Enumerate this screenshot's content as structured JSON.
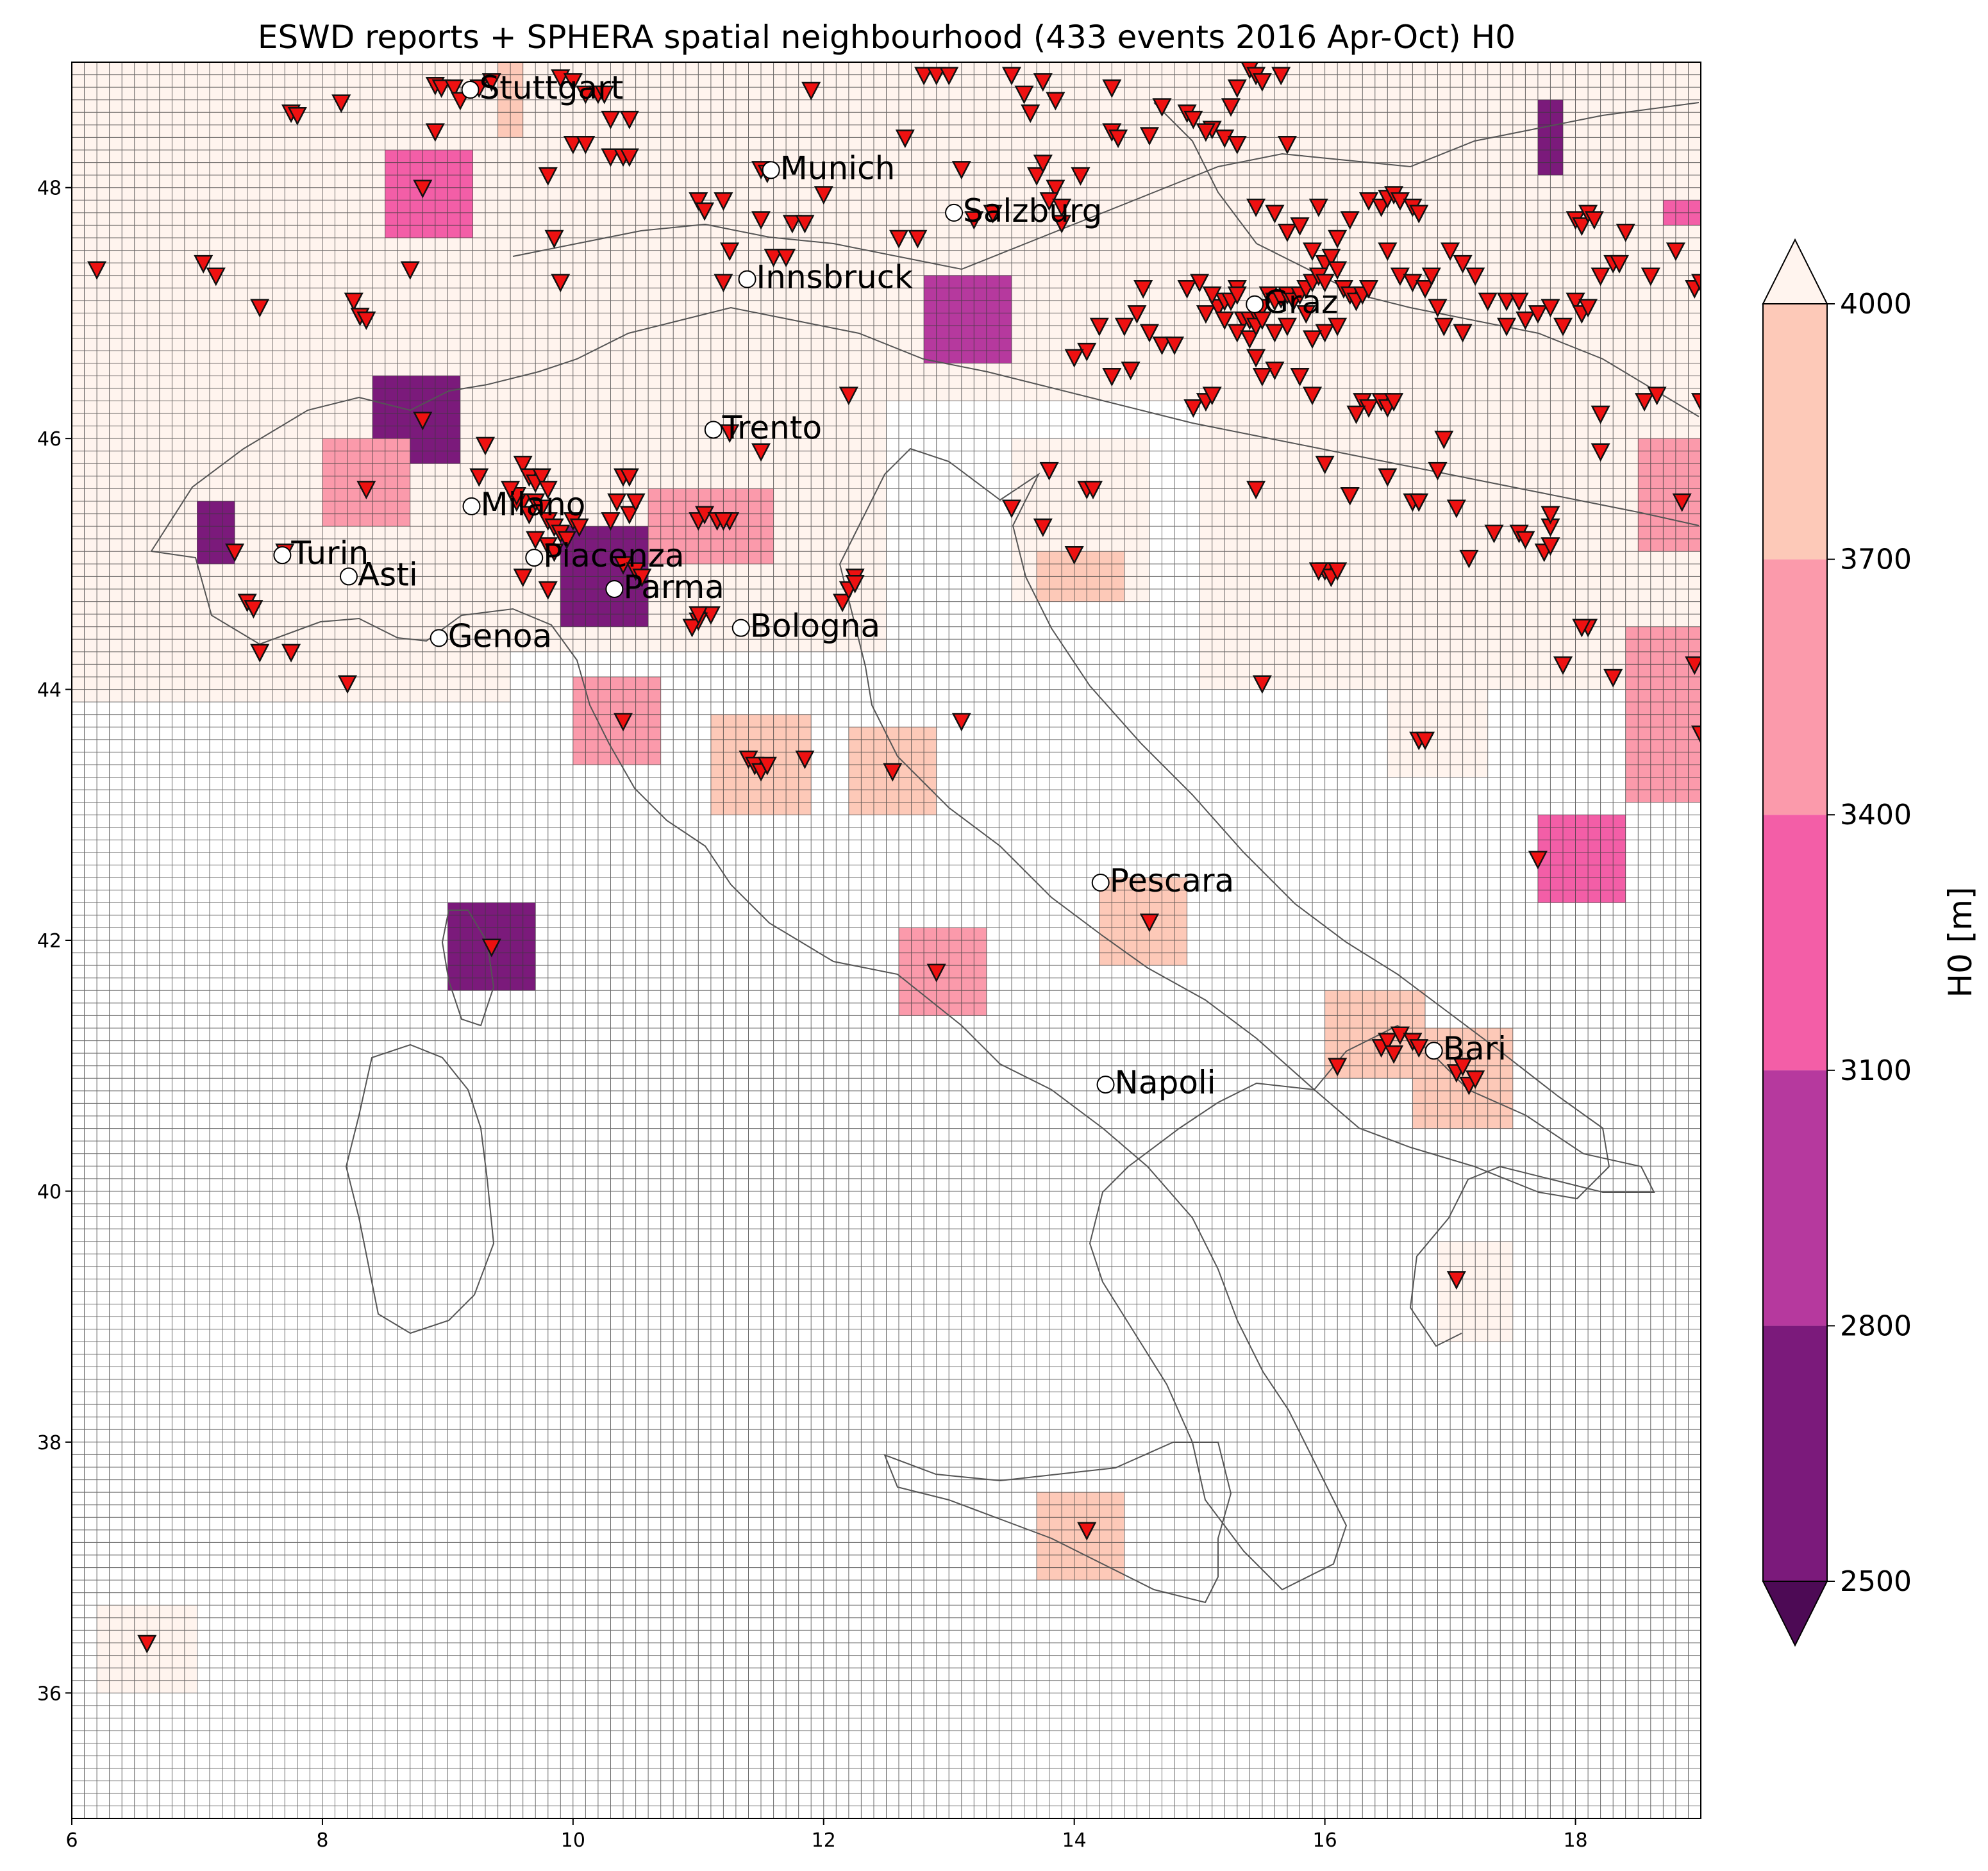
{
  "title": "ESWD reports + SPHERA spatial neighbourhood (433 events 2016 Apr-Oct) H0",
  "map": {
    "lon_range": [
      6,
      19
    ],
    "lat_range": [
      35,
      49
    ],
    "lon_ticks": [
      "6",
      "8",
      "10",
      "12",
      "14",
      "16",
      "18"
    ],
    "lat_ticks": [
      "36",
      "38",
      "40",
      "42",
      "44",
      "46",
      "48"
    ],
    "grid_spacing_deg": 0.1
  },
  "cities": [
    {
      "name": "Stuttgart",
      "lon": 9.18,
      "lat": 48.78
    },
    {
      "name": "Munich",
      "lon": 11.58,
      "lat": 48.14
    },
    {
      "name": "Salzburg",
      "lon": 13.04,
      "lat": 47.8
    },
    {
      "name": "Innsbruck",
      "lon": 11.39,
      "lat": 47.27
    },
    {
      "name": "Graz",
      "lon": 15.44,
      "lat": 47.07
    },
    {
      "name": "Trento",
      "lon": 11.12,
      "lat": 46.07
    },
    {
      "name": "Milano",
      "lon": 9.19,
      "lat": 45.46
    },
    {
      "name": "Turin",
      "lon": 7.68,
      "lat": 45.07
    },
    {
      "name": "Asti",
      "lon": 8.21,
      "lat": 44.9
    },
    {
      "name": "Piacenza",
      "lon": 9.69,
      "lat": 45.05
    },
    {
      "name": "Parma",
      "lon": 10.33,
      "lat": 44.8
    },
    {
      "name": "Bologna",
      "lon": 11.34,
      "lat": 44.49
    },
    {
      "name": "Genoa",
      "lon": 8.93,
      "lat": 44.41
    },
    {
      "name": "Pescara",
      "lon": 14.21,
      "lat": 42.46
    },
    {
      "name": "Bari",
      "lon": 16.87,
      "lat": 41.12
    },
    {
      "name": "Napoli",
      "lon": 14.25,
      "lat": 40.85
    }
  ],
  "colorbar": {
    "label": "H0  [m]",
    "levels": [
      2500,
      2800,
      3100,
      3400,
      3700,
      4000
    ],
    "tick_labels": [
      "2500",
      "2800",
      "3100",
      "3400",
      "3700",
      "4000"
    ],
    "colors": [
      "#7b1a7b",
      "#b6399e",
      "#f35ea7",
      "#fb9aab",
      "#fdc9b8"
    ],
    "under_color": "#4d0a55",
    "over_color": "#fff4ee"
  },
  "h0_patches": [
    {
      "lon0": 8.5,
      "lon1": 9.2,
      "lat0": 47.6,
      "lat1": 48.3,
      "value": 3200
    },
    {
      "lon0": 8.4,
      "lon1": 9.1,
      "lat0": 45.8,
      "lat1": 46.5,
      "value": 2650
    },
    {
      "lon0": 8.0,
      "lon1": 8.7,
      "lat0": 45.3,
      "lat1": 46.0,
      "value": 3600
    },
    {
      "lon0": 7.0,
      "lon1": 7.3,
      "lat0": 45.0,
      "lat1": 45.5,
      "value": 2750
    },
    {
      "lon0": 9.9,
      "lon1": 10.6,
      "lat0": 44.5,
      "lat1": 45.3,
      "value": 2650
    },
    {
      "lon0": 10.6,
      "lon1": 11.6,
      "lat0": 45.0,
      "lat1": 45.6,
      "value": 3500
    },
    {
      "lon0": 12.8,
      "lon1": 13.5,
      "lat0": 46.6,
      "lat1": 47.3,
      "value": 2900
    },
    {
      "lon0": 10.0,
      "lon1": 10.7,
      "lat0": 43.4,
      "lat1": 44.1,
      "value": 3550
    },
    {
      "lon0": 11.1,
      "lon1": 11.9,
      "lat0": 43.0,
      "lat1": 43.8,
      "value": 3800
    },
    {
      "lon0": 12.2,
      "lon1": 12.9,
      "lat0": 43.0,
      "lat1": 43.7,
      "value": 3800
    },
    {
      "lon0": 9.0,
      "lon1": 9.7,
      "lat0": 41.6,
      "lat1": 42.3,
      "value": 2700
    },
    {
      "lon0": 12.6,
      "lon1": 13.3,
      "lat0": 41.4,
      "lat1": 42.1,
      "value": 3600
    },
    {
      "lon0": 14.2,
      "lon1": 14.9,
      "lat0": 41.8,
      "lat1": 42.5,
      "value": 3850
    },
    {
      "lon0": 17.7,
      "lon1": 18.4,
      "lat0": 42.3,
      "lat1": 43.0,
      "value": 3200
    },
    {
      "lon0": 16.7,
      "lon1": 17.5,
      "lat0": 40.5,
      "lat1": 41.3,
      "value": 3800
    },
    {
      "lon0": 16.0,
      "lon1": 16.8,
      "lat0": 40.9,
      "lat1": 41.6,
      "value": 3900
    },
    {
      "lon0": 18.5,
      "lon1": 19.0,
      "lat0": 45.1,
      "lat1": 46.0,
      "value": 3600
    },
    {
      "lon0": 18.4,
      "lon1": 19.0,
      "lat0": 43.1,
      "lat1": 44.5,
      "value": 3650
    },
    {
      "lon0": 17.7,
      "lon1": 17.9,
      "lat0": 48.1,
      "lat1": 48.7,
      "value": 2700
    },
    {
      "lon0": 13.7,
      "lon1": 14.4,
      "lat0": 44.7,
      "lat1": 45.1,
      "value": 3850
    },
    {
      "lon0": 13.7,
      "lon1": 14.4,
      "lat0": 36.9,
      "lat1": 37.6,
      "value": 3750
    },
    {
      "lon0": 18.7,
      "lon1": 19.0,
      "lat0": 47.7,
      "lat1": 47.9,
      "value": 3200
    },
    {
      "lon0": 9.4,
      "lon1": 9.6,
      "lat0": 48.4,
      "lat1": 49.0,
      "value": 3900
    }
  ],
  "light_patches": [
    {
      "lon0": 6.0,
      "lon1": 19.0,
      "lat0": 46.3,
      "lat1": 49.0
    },
    {
      "lon0": 6.0,
      "lon1": 9.5,
      "lat0": 43.9,
      "lat1": 46.3
    },
    {
      "lon0": 9.5,
      "lon1": 12.5,
      "lat0": 44.3,
      "lat1": 46.3
    },
    {
      "lon0": 13.5,
      "lon1": 14.6,
      "lat0": 44.7,
      "lat1": 46.0
    },
    {
      "lon0": 15.0,
      "lon1": 19.0,
      "lat0": 44.0,
      "lat1": 46.3
    },
    {
      "lon0": 16.5,
      "lon1": 17.3,
      "lat0": 43.3,
      "lat1": 44.0
    },
    {
      "lon0": 16.9,
      "lon1": 17.5,
      "lat0": 38.8,
      "lat1": 39.6
    },
    {
      "lon0": 6.2,
      "lon1": 7.0,
      "lat0": 36.0,
      "lat1": 36.7
    }
  ],
  "reports": [
    [
      6.2,
      47.35
    ],
    [
      7.05,
      47.4
    ],
    [
      7.15,
      47.3
    ],
    [
      7.5,
      47.05
    ],
    [
      7.75,
      48.6
    ],
    [
      7.8,
      48.58
    ],
    [
      8.15,
      48.68
    ],
    [
      8.25,
      47.1
    ],
    [
      8.3,
      46.98
    ],
    [
      8.35,
      46.95
    ],
    [
      8.7,
      47.35
    ],
    [
      8.8,
      48.0
    ],
    [
      8.9,
      48.82
    ],
    [
      8.95,
      48.8
    ],
    [
      9.05,
      48.8
    ],
    [
      9.1,
      48.7
    ],
    [
      8.9,
      48.45
    ],
    [
      9.25,
      48.8
    ],
    [
      9.35,
      48.85
    ],
    [
      9.9,
      48.88
    ],
    [
      10.0,
      48.85
    ],
    [
      10.1,
      48.75
    ],
    [
      10.2,
      48.75
    ],
    [
      10.25,
      48.75
    ],
    [
      10.3,
      48.55
    ],
    [
      10.45,
      48.55
    ],
    [
      10.0,
      48.35
    ],
    [
      10.1,
      48.35
    ],
    [
      10.3,
      48.25
    ],
    [
      10.4,
      48.25
    ],
    [
      10.45,
      48.25
    ],
    [
      9.8,
      48.1
    ],
    [
      9.85,
      47.6
    ],
    [
      9.9,
      47.25
    ],
    [
      11.5,
      48.15
    ],
    [
      11.55,
      48.12
    ],
    [
      11.9,
      48.78
    ],
    [
      11.5,
      47.75
    ],
    [
      11.6,
      47.45
    ],
    [
      11.75,
      47.72
    ],
    [
      11.85,
      47.72
    ],
    [
      12.0,
      47.95
    ],
    [
      11.0,
      47.9
    ],
    [
      11.05,
      47.82
    ],
    [
      11.2,
      47.9
    ],
    [
      11.25,
      47.5
    ],
    [
      11.2,
      47.25
    ],
    [
      11.7,
      47.45
    ],
    [
      12.6,
      47.6
    ],
    [
      12.65,
      48.4
    ],
    [
      12.75,
      47.6
    ],
    [
      12.8,
      48.9
    ],
    [
      12.9,
      48.9
    ],
    [
      13.0,
      48.9
    ],
    [
      13.2,
      47.75
    ],
    [
      13.1,
      48.15
    ],
    [
      13.35,
      47.8
    ],
    [
      13.5,
      48.9
    ],
    [
      13.6,
      48.75
    ],
    [
      13.65,
      48.6
    ],
    [
      13.75,
      48.85
    ],
    [
      13.7,
      48.1
    ],
    [
      13.85,
      48.7
    ],
    [
      13.75,
      48.2
    ],
    [
      13.85,
      48.0
    ],
    [
      13.8,
      47.9
    ],
    [
      13.9,
      47.85
    ],
    [
      13.9,
      47.72
    ],
    [
      14.05,
      48.1
    ],
    [
      14.3,
      48.8
    ],
    [
      14.3,
      48.45
    ],
    [
      14.35,
      48.4
    ],
    [
      14.6,
      48.42
    ],
    [
      14.7,
      48.65
    ],
    [
      14.9,
      48.6
    ],
    [
      14.95,
      48.55
    ],
    [
      15.1,
      48.47
    ],
    [
      15.05,
      48.45
    ],
    [
      15.2,
      48.4
    ],
    [
      15.25,
      48.65
    ],
    [
      15.3,
      48.8
    ],
    [
      15.4,
      48.95
    ],
    [
      15.45,
      48.9
    ],
    [
      15.5,
      48.85
    ],
    [
      15.65,
      48.9
    ],
    [
      15.7,
      48.35
    ],
    [
      15.3,
      48.35
    ],
    [
      15.45,
      47.85
    ],
    [
      15.6,
      47.8
    ],
    [
      15.7,
      47.65
    ],
    [
      15.8,
      47.7
    ],
    [
      15.9,
      47.5
    ],
    [
      15.95,
      47.85
    ],
    [
      16.0,
      47.4
    ],
    [
      16.05,
      47.45
    ],
    [
      16.1,
      47.6
    ],
    [
      16.2,
      47.75
    ],
    [
      16.35,
      47.9
    ],
    [
      16.45,
      47.85
    ],
    [
      16.5,
      47.92
    ],
    [
      16.55,
      47.95
    ],
    [
      16.6,
      47.9
    ],
    [
      16.7,
      47.85
    ],
    [
      16.75,
      47.8
    ],
    [
      16.5,
      47.5
    ],
    [
      16.6,
      47.3
    ],
    [
      16.7,
      47.25
    ],
    [
      16.8,
      47.2
    ],
    [
      16.85,
      47.3
    ],
    [
      17.0,
      47.5
    ],
    [
      17.1,
      47.4
    ],
    [
      17.2,
      47.3
    ],
    [
      16.9,
      47.05
    ],
    [
      16.95,
      46.9
    ],
    [
      17.1,
      46.85
    ],
    [
      17.3,
      47.1
    ],
    [
      17.45,
      47.1
    ],
    [
      17.55,
      47.1
    ],
    [
      17.45,
      46.9
    ],
    [
      17.6,
      46.95
    ],
    [
      17.7,
      47.0
    ],
    [
      17.8,
      47.05
    ],
    [
      17.9,
      46.9
    ],
    [
      18.0,
      47.1
    ],
    [
      18.05,
      47.0
    ],
    [
      18.1,
      47.05
    ],
    [
      18.2,
      47.3
    ],
    [
      18.3,
      47.4
    ],
    [
      18.35,
      47.4
    ],
    [
      18.6,
      47.3
    ],
    [
      18.8,
      47.5
    ],
    [
      18.95,
      47.2
    ],
    [
      19.0,
      47.25
    ],
    [
      18.0,
      47.75
    ],
    [
      18.05,
      47.7
    ],
    [
      18.1,
      47.8
    ],
    [
      18.15,
      47.75
    ],
    [
      18.4,
      47.65
    ],
    [
      14.9,
      47.2
    ],
    [
      15.0,
      47.25
    ],
    [
      15.05,
      47.0
    ],
    [
      15.15,
      47.05
    ],
    [
      15.2,
      47.1
    ],
    [
      15.25,
      47.1
    ],
    [
      15.3,
      47.2
    ],
    [
      15.35,
      46.95
    ],
    [
      15.4,
      46.95
    ],
    [
      15.45,
      47.0
    ],
    [
      15.5,
      47.05
    ],
    [
      15.55,
      47.15
    ],
    [
      15.6,
      47.1
    ],
    [
      15.65,
      47.12
    ],
    [
      15.7,
      47.15
    ],
    [
      15.75,
      47.1
    ],
    [
      15.8,
      47.15
    ],
    [
      15.85,
      47.2
    ],
    [
      15.9,
      47.25
    ],
    [
      15.95,
      47.3
    ],
    [
      16.0,
      47.25
    ],
    [
      16.1,
      47.35
    ],
    [
      16.15,
      47.2
    ],
    [
      16.2,
      47.15
    ],
    [
      16.25,
      47.1
    ],
    [
      16.3,
      47.15
    ],
    [
      16.35,
      47.2
    ],
    [
      15.2,
      46.95
    ],
    [
      15.3,
      46.85
    ],
    [
      15.4,
      46.8
    ],
    [
      15.45,
      46.9
    ],
    [
      15.5,
      46.95
    ],
    [
      15.6,
      46.85
    ],
    [
      15.7,
      46.9
    ],
    [
      15.85,
      47.0
    ],
    [
      16.0,
      46.85
    ],
    [
      16.1,
      46.9
    ],
    [
      15.9,
      46.8
    ],
    [
      15.3,
      47.15
    ],
    [
      15.1,
      47.15
    ],
    [
      14.5,
      47.0
    ],
    [
      14.4,
      46.9
    ],
    [
      14.2,
      46.9
    ],
    [
      14.1,
      46.7
    ],
    [
      14.0,
      46.65
    ],
    [
      14.3,
      46.5
    ],
    [
      14.45,
      46.55
    ],
    [
      14.7,
      46.75
    ],
    [
      14.8,
      46.75
    ],
    [
      14.55,
      47.2
    ],
    [
      14.6,
      46.85
    ],
    [
      14.95,
      46.25
    ],
    [
      15.05,
      46.3
    ],
    [
      15.1,
      46.35
    ],
    [
      15.45,
      46.65
    ],
    [
      15.6,
      46.55
    ],
    [
      15.8,
      46.5
    ],
    [
      15.9,
      46.35
    ],
    [
      16.3,
      46.3
    ],
    [
      16.35,
      46.25
    ],
    [
      16.45,
      46.3
    ],
    [
      16.5,
      46.25
    ],
    [
      16.55,
      46.3
    ],
    [
      16.25,
      46.2
    ],
    [
      16.0,
      45.8
    ],
    [
      16.2,
      45.55
    ],
    [
      16.5,
      45.7
    ],
    [
      16.7,
      45.5
    ],
    [
      16.75,
      45.5
    ],
    [
      16.9,
      45.75
    ],
    [
      17.05,
      45.45
    ],
    [
      16.95,
      46.0
    ],
    [
      17.35,
      45.25
    ],
    [
      17.55,
      45.25
    ],
    [
      17.6,
      45.2
    ],
    [
      17.75,
      45.1
    ],
    [
      17.8,
      45.15
    ],
    [
      17.8,
      45.3
    ],
    [
      17.8,
      45.4
    ],
    [
      18.1,
      44.5
    ],
    [
      18.05,
      44.5
    ],
    [
      18.2,
      46.2
    ],
    [
      18.2,
      45.9
    ],
    [
      18.55,
      46.3
    ],
    [
      18.65,
      46.35
    ],
    [
      18.85,
      45.5
    ],
    [
      19.0,
      46.3
    ],
    [
      19.0,
      43.65
    ],
    [
      18.95,
      44.2
    ],
    [
      17.9,
      44.2
    ],
    [
      18.3,
      44.1
    ],
    [
      17.15,
      45.05
    ],
    [
      16.0,
      44.95
    ],
    [
      16.05,
      44.9
    ],
    [
      15.95,
      44.95
    ],
    [
      16.1,
      44.95
    ],
    [
      16.75,
      43.6
    ],
    [
      16.8,
      43.6
    ],
    [
      15.5,
      44.05
    ],
    [
      15.45,
      45.6
    ],
    [
      15.5,
      46.5
    ],
    [
      13.8,
      45.75
    ],
    [
      13.75,
      45.3
    ],
    [
      14.0,
      45.08
    ],
    [
      14.1,
      45.6
    ],
    [
      14.15,
      45.6
    ],
    [
      13.5,
      45.45
    ],
    [
      9.6,
      45.8
    ],
    [
      9.65,
      45.7
    ],
    [
      9.7,
      45.65
    ],
    [
      9.75,
      45.7
    ],
    [
      9.8,
      45.6
    ],
    [
      9.6,
      45.5
    ],
    [
      9.55,
      45.5
    ],
    [
      9.65,
      45.4
    ],
    [
      9.7,
      45.5
    ],
    [
      9.75,
      45.45
    ],
    [
      9.8,
      45.35
    ],
    [
      9.85,
      45.3
    ],
    [
      9.9,
      45.25
    ],
    [
      9.95,
      45.2
    ],
    [
      10.0,
      45.35
    ],
    [
      10.05,
      45.3
    ],
    [
      9.8,
      45.15
    ],
    [
      9.7,
      45.2
    ],
    [
      9.85,
      45.1
    ],
    [
      9.6,
      44.9
    ],
    [
      9.8,
      44.8
    ],
    [
      10.3,
      45.35
    ],
    [
      10.35,
      45.5
    ],
    [
      10.4,
      45.7
    ],
    [
      10.45,
      45.7
    ],
    [
      10.45,
      45.4
    ],
    [
      10.5,
      45.5
    ],
    [
      10.4,
      45.0
    ],
    [
      10.5,
      44.95
    ],
    [
      10.55,
      44.9
    ],
    [
      9.25,
      45.7
    ],
    [
      9.3,
      45.95
    ],
    [
      8.8,
      46.15
    ],
    [
      8.35,
      45.6
    ],
    [
      9.55,
      45.55
    ],
    [
      9.5,
      45.6
    ],
    [
      11.0,
      45.35
    ],
    [
      11.05,
      45.4
    ],
    [
      11.15,
      45.35
    ],
    [
      11.25,
      45.35
    ],
    [
      11.2,
      45.35
    ],
    [
      11.5,
      45.9
    ],
    [
      11.25,
      46.05
    ],
    [
      11.1,
      44.6
    ],
    [
      11.0,
      44.55
    ],
    [
      10.95,
      44.5
    ],
    [
      11.0,
      44.6
    ],
    [
      12.15,
      44.7
    ],
    [
      12.2,
      44.8
    ],
    [
      12.25,
      44.9
    ],
    [
      12.2,
      46.35
    ],
    [
      12.25,
      44.85
    ],
    [
      7.3,
      45.1
    ],
    [
      7.4,
      44.7
    ],
    [
      7.45,
      44.65
    ],
    [
      7.5,
      44.3
    ],
    [
      7.75,
      44.3
    ],
    [
      7.7,
      45.1
    ],
    [
      8.2,
      44.05
    ],
    [
      10.4,
      43.75
    ],
    [
      11.4,
      43.45
    ],
    [
      11.45,
      43.4
    ],
    [
      11.5,
      43.35
    ],
    [
      11.55,
      43.4
    ],
    [
      11.85,
      43.45
    ],
    [
      12.55,
      43.35
    ],
    [
      13.1,
      43.75
    ],
    [
      12.9,
      41.75
    ],
    [
      14.6,
      42.15
    ],
    [
      9.35,
      41.95
    ],
    [
      17.7,
      42.65
    ],
    [
      16.1,
      41.0
    ],
    [
      16.45,
      41.15
    ],
    [
      16.5,
      41.2
    ],
    [
      16.55,
      41.1
    ],
    [
      16.6,
      41.25
    ],
    [
      16.7,
      41.2
    ],
    [
      16.75,
      41.15
    ],
    [
      17.05,
      40.95
    ],
    [
      17.1,
      41.0
    ],
    [
      17.15,
      40.85
    ],
    [
      17.2,
      40.9
    ],
    [
      17.05,
      39.3
    ],
    [
      14.1,
      37.3
    ],
    [
      6.6,
      36.4
    ]
  ]
}
